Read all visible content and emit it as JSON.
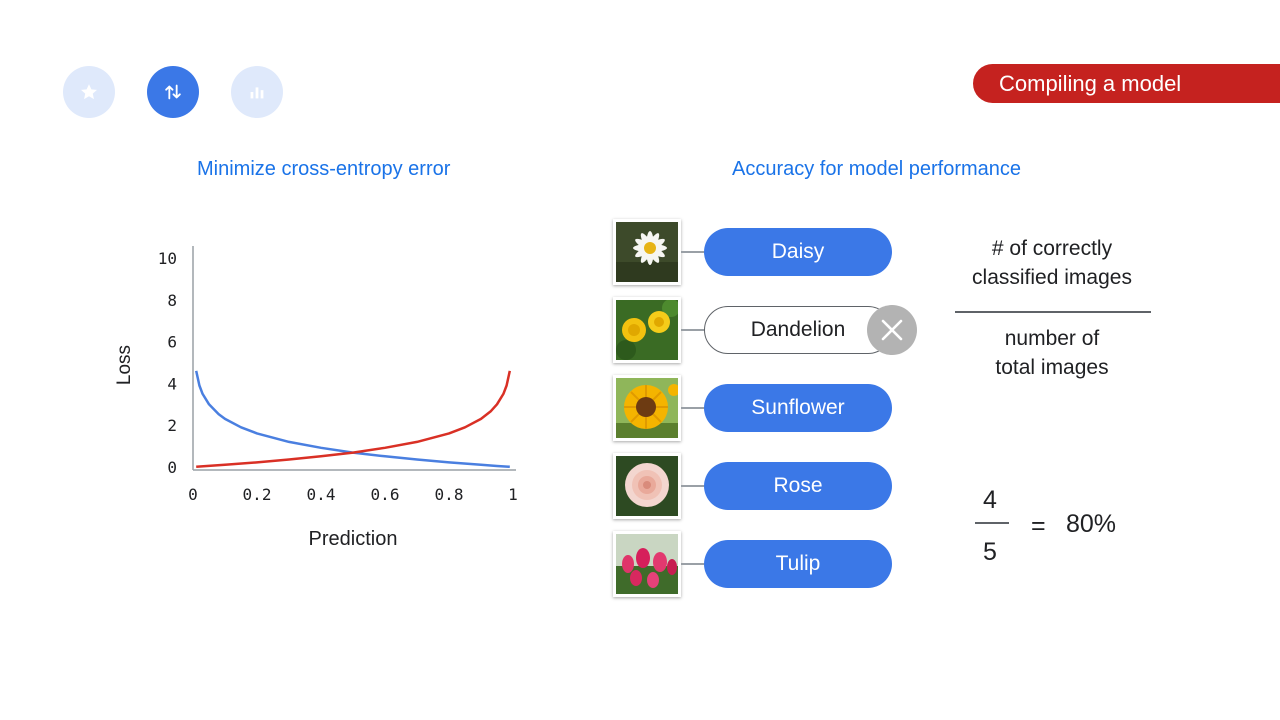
{
  "nav": {
    "items": [
      {
        "icon": "star-icon",
        "state": "inactive"
      },
      {
        "icon": "sort-arrows-icon",
        "state": "active"
      },
      {
        "icon": "bar-chart-icon",
        "state": "inactive"
      }
    ]
  },
  "section_badge": "Compiling a model",
  "left_panel": {
    "title": "Minimize cross-entropy error"
  },
  "right_panel": {
    "title": "Accuracy for model performance"
  },
  "chart_data": {
    "type": "line",
    "xlabel": "Prediction",
    "ylabel": "Loss",
    "xlim": [
      0,
      1
    ],
    "ylim": [
      0,
      10
    ],
    "x_ticks": [
      "0",
      "0.2",
      "0.4",
      "0.6",
      "0.8",
      "1"
    ],
    "y_ticks": [
      "0",
      "2",
      "4",
      "6",
      "8",
      "10"
    ],
    "grid": false,
    "series": [
      {
        "color": "#4a7fe0",
        "x": [
          0.01,
          0.02,
          0.03,
          0.05,
          0.08,
          0.1,
          0.15,
          0.2,
          0.3,
          0.4,
          0.5,
          0.6,
          0.7,
          0.8,
          0.9,
          0.95,
          0.99
        ],
        "y": [
          4.6,
          3.9,
          3.5,
          3.0,
          2.53,
          2.3,
          1.9,
          1.61,
          1.2,
          0.92,
          0.69,
          0.51,
          0.36,
          0.22,
          0.11,
          0.05,
          0.01
        ]
      },
      {
        "color": "#d93025",
        "x": [
          0.01,
          0.1,
          0.2,
          0.3,
          0.4,
          0.5,
          0.6,
          0.7,
          0.8,
          0.85,
          0.9,
          0.93,
          0.95,
          0.97,
          0.98,
          0.99
        ],
        "y": [
          0.01,
          0.11,
          0.22,
          0.36,
          0.51,
          0.69,
          0.92,
          1.2,
          1.61,
          1.9,
          2.3,
          2.66,
          3.0,
          3.5,
          3.9,
          4.6
        ]
      }
    ]
  },
  "classification": {
    "items": [
      {
        "label": "Daisy",
        "thumb_icon": "daisy-image-icon",
        "correct": true
      },
      {
        "label": "Dandelion",
        "thumb_icon": "dandelion-image-icon",
        "correct": false
      },
      {
        "label": "Sunflower",
        "thumb_icon": "sunflower-image-icon",
        "correct": true
      },
      {
        "label": "Rose",
        "thumb_icon": "rose-image-icon",
        "correct": true
      },
      {
        "label": "Tulip",
        "thumb_icon": "tulip-image-icon",
        "correct": true
      }
    ],
    "wrong_icon": "close-icon"
  },
  "formula": {
    "numerator_line1": "# of correctly",
    "numerator_line2": "classified images",
    "denominator_line1": "number of",
    "denominator_line2": "total images",
    "result_numerator": "4",
    "result_denominator": "5",
    "equals": "=",
    "result": "80%"
  },
  "colors": {
    "accent_blue": "#3b78e7",
    "title_blue": "#1a73e8",
    "badge_red": "#c5221f",
    "loss_blue": "#4a7fe0",
    "loss_red": "#d93025"
  }
}
